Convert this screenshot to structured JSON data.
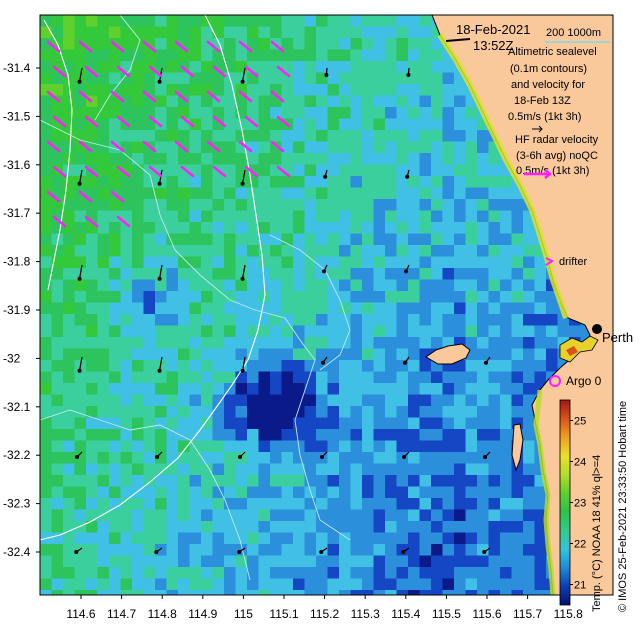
{
  "title": {
    "date": "18-Feb-2021",
    "time": "13:52Z",
    "depth_contours": "200  1000m"
  },
  "altimetry_legend": {
    "lines": [
      "Altimetric sealevel",
      "(0.1m contours)",
      "and velocity for",
      "18-Feb 13Z",
      "0.5m/s (1kt 3h)"
    ]
  },
  "hf_radar_legend": {
    "lines": [
      "HF radar velocity",
      "(3-6h avg) noQC",
      "0.5m/s (1kt 3h)"
    ]
  },
  "drifter_label": "drifter",
  "city_label": "Perth",
  "argo_label": "Argo 0",
  "colorbar": {
    "title": "Temp. (°C) NOAA 18 41% ql>=4",
    "ticks": [
      "25",
      "24",
      "23",
      "22",
      "21"
    ],
    "tick_values": [
      25,
      24,
      23,
      22,
      21
    ],
    "range": [
      20.5,
      25.5
    ],
    "colors": [
      "#08106e",
      "#0a3fb5",
      "#1d8cd6",
      "#35c2e0",
      "#36c98a",
      "#2bc34a",
      "#5ecf2e",
      "#b4dd2a",
      "#e8e02b",
      "#f0a020",
      "#d8541a",
      "#a01818"
    ]
  },
  "credit": "© IMOS 25-Feb-2021 23:33:50 Hobart time",
  "axes": {
    "lat_ticks": [
      "-31.4",
      "-31.5",
      "-31.6",
      "-31.7",
      "-31.8",
      "-31.9",
      "-32",
      "-32.1",
      "-32.2",
      "-32.3",
      "-32.4"
    ],
    "lat_values": [
      -31.4,
      -31.5,
      -31.6,
      -31.7,
      -31.8,
      -31.9,
      -32.0,
      -32.1,
      -32.2,
      -32.3,
      -32.4
    ],
    "lon_ticks": [
      "114.6",
      "114.7",
      "114.8",
      "114.9",
      "115",
      "115.1",
      "115.2",
      "115.3",
      "115.4",
      "115.5",
      "115.6",
      "115.7",
      "115.8"
    ],
    "lon_values": [
      114.6,
      114.7,
      114.8,
      114.9,
      115.0,
      115.1,
      115.2,
      115.3,
      115.4,
      115.5,
      115.6,
      115.7,
      115.8
    ]
  },
  "colors": {
    "land": "#f9c89b",
    "hf_radar_arrow": "#ff20ff",
    "altimetry_arrow": "#000000",
    "contour": "#ffffff"
  }
}
